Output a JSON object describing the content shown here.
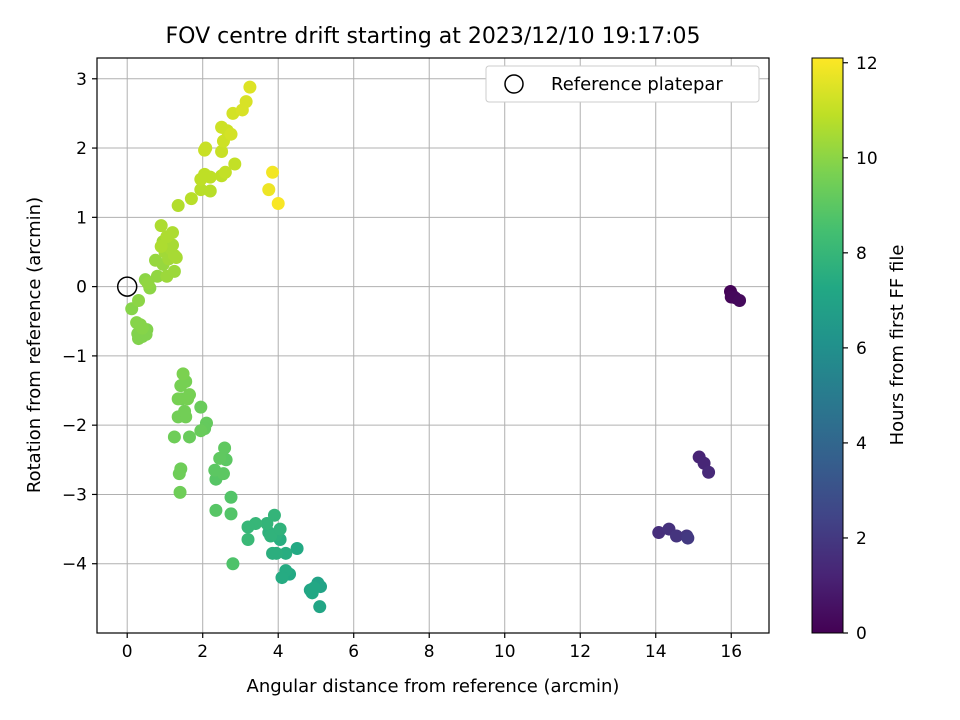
{
  "chart_data": {
    "type": "scatter",
    "title": "FOV centre drift starting at 2023/12/10 19:17:05",
    "xlabel": "Angular distance from reference (arcmin)",
    "ylabel": "Rotation from reference (arcmin)",
    "xlim": [
      -0.8,
      17.0
    ],
    "ylim": [
      -5.0,
      3.3
    ],
    "xticks": [
      0,
      2,
      4,
      6,
      8,
      10,
      12,
      14,
      16
    ],
    "yticks": [
      -4,
      -3,
      -2,
      -1,
      0,
      1,
      2,
      3
    ],
    "grid": true,
    "legend": {
      "position": "top-right",
      "entries": [
        "Reference platepar"
      ]
    },
    "reference_point": {
      "x": 0,
      "y": 0
    },
    "colorbar": {
      "label": "Hours from first FF file",
      "range": [
        0,
        12.1
      ],
      "ticks": [
        0,
        2,
        4,
        6,
        8,
        10,
        12
      ],
      "colormap": "viridis"
    },
    "points": [
      {
        "x": 15.98,
        "y": -0.07,
        "h": 0.1
      },
      {
        "x": 16.02,
        "y": -0.12,
        "h": 0.15
      },
      {
        "x": 16.0,
        "y": -0.15,
        "h": 0.2
      },
      {
        "x": 16.1,
        "y": -0.16,
        "h": 0.25
      },
      {
        "x": 16.22,
        "y": -0.2,
        "h": 0.3
      },
      {
        "x": 15.15,
        "y": -2.46,
        "h": 1.2
      },
      {
        "x": 15.28,
        "y": -2.55,
        "h": 1.3
      },
      {
        "x": 15.4,
        "y": -2.68,
        "h": 1.4
      },
      {
        "x": 14.08,
        "y": -3.55,
        "h": 1.6
      },
      {
        "x": 14.35,
        "y": -3.5,
        "h": 1.7
      },
      {
        "x": 14.55,
        "y": -3.6,
        "h": 1.8
      },
      {
        "x": 14.82,
        "y": -3.6,
        "h": 1.9
      },
      {
        "x": 14.85,
        "y": -3.63,
        "h": 2.0
      },
      {
        "x": 5.05,
        "y": -4.28,
        "h": 7.0
      },
      {
        "x": 5.12,
        "y": -4.33,
        "h": 7.0
      },
      {
        "x": 5.1,
        "y": -4.62,
        "h": 7.1
      },
      {
        "x": 4.85,
        "y": -4.38,
        "h": 7.1
      },
      {
        "x": 4.9,
        "y": -4.42,
        "h": 7.2
      },
      {
        "x": 4.95,
        "y": -4.35,
        "h": 7.2
      },
      {
        "x": 4.5,
        "y": -3.78,
        "h": 7.3
      },
      {
        "x": 4.3,
        "y": -4.15,
        "h": 7.3
      },
      {
        "x": 4.2,
        "y": -4.1,
        "h": 7.4
      },
      {
        "x": 4.1,
        "y": -4.2,
        "h": 7.4
      },
      {
        "x": 4.2,
        "y": -3.85,
        "h": 7.5
      },
      {
        "x": 4.05,
        "y": -3.65,
        "h": 7.5
      },
      {
        "x": 3.95,
        "y": -3.85,
        "h": 7.6
      },
      {
        "x": 3.85,
        "y": -3.85,
        "h": 7.6
      },
      {
        "x": 3.95,
        "y": -3.58,
        "h": 7.7
      },
      {
        "x": 3.75,
        "y": -3.55,
        "h": 7.7
      },
      {
        "x": 3.8,
        "y": -3.6,
        "h": 7.8
      },
      {
        "x": 4.05,
        "y": -3.5,
        "h": 7.8
      },
      {
        "x": 3.9,
        "y": -3.3,
        "h": 7.9
      },
      {
        "x": 3.7,
        "y": -3.42,
        "h": 7.9
      },
      {
        "x": 3.4,
        "y": -3.42,
        "h": 8.0
      },
      {
        "x": 3.2,
        "y": -3.47,
        "h": 8.0
      },
      {
        "x": 3.2,
        "y": -3.65,
        "h": 8.1
      },
      {
        "x": 2.8,
        "y": -4.0,
        "h": 8.7
      },
      {
        "x": 2.75,
        "y": -3.28,
        "h": 8.8
      },
      {
        "x": 2.75,
        "y": -3.04,
        "h": 8.8
      },
      {
        "x": 2.35,
        "y": -3.23,
        "h": 8.9
      },
      {
        "x": 2.35,
        "y": -2.78,
        "h": 8.9
      },
      {
        "x": 2.32,
        "y": -2.65,
        "h": 9.0
      },
      {
        "x": 2.55,
        "y": -2.7,
        "h": 9.0
      },
      {
        "x": 2.62,
        "y": -2.5,
        "h": 9.0
      },
      {
        "x": 2.45,
        "y": -2.48,
        "h": 9.1
      },
      {
        "x": 2.58,
        "y": -2.33,
        "h": 9.1
      },
      {
        "x": 2.1,
        "y": -1.97,
        "h": 9.2
      },
      {
        "x": 2.05,
        "y": -2.05,
        "h": 9.2
      },
      {
        "x": 1.95,
        "y": -2.08,
        "h": 9.3
      },
      {
        "x": 1.95,
        "y": -1.74,
        "h": 9.3
      },
      {
        "x": 1.65,
        "y": -2.17,
        "h": 9.3
      },
      {
        "x": 1.25,
        "y": -2.17,
        "h": 9.4
      },
      {
        "x": 1.4,
        "y": -2.97,
        "h": 9.4
      },
      {
        "x": 1.38,
        "y": -2.7,
        "h": 9.4
      },
      {
        "x": 1.42,
        "y": -2.63,
        "h": 9.4
      },
      {
        "x": 1.35,
        "y": -1.88,
        "h": 9.5
      },
      {
        "x": 1.55,
        "y": -1.88,
        "h": 9.5
      },
      {
        "x": 1.52,
        "y": -1.8,
        "h": 9.5
      },
      {
        "x": 1.45,
        "y": -1.62,
        "h": 9.5
      },
      {
        "x": 1.35,
        "y": -1.62,
        "h": 9.6
      },
      {
        "x": 1.6,
        "y": -1.62,
        "h": 9.6
      },
      {
        "x": 1.65,
        "y": -1.56,
        "h": 9.6
      },
      {
        "x": 1.42,
        "y": -1.43,
        "h": 9.6
      },
      {
        "x": 1.55,
        "y": -1.37,
        "h": 9.6
      },
      {
        "x": 1.48,
        "y": -1.26,
        "h": 9.7
      },
      {
        "x": 0.3,
        "y": -0.75,
        "h": 9.8
      },
      {
        "x": 0.28,
        "y": -0.68,
        "h": 9.8
      },
      {
        "x": 0.4,
        "y": -0.72,
        "h": 9.8
      },
      {
        "x": 0.5,
        "y": -0.69,
        "h": 9.8
      },
      {
        "x": 0.52,
        "y": -0.62,
        "h": 9.8
      },
      {
        "x": 0.4,
        "y": -0.6,
        "h": 9.9
      },
      {
        "x": 0.35,
        "y": -0.55,
        "h": 9.9
      },
      {
        "x": 0.25,
        "y": -0.52,
        "h": 9.9
      },
      {
        "x": 0.12,
        "y": -0.32,
        "h": 9.9
      },
      {
        "x": 0.3,
        "y": -0.2,
        "h": 10.0
      },
      {
        "x": 0.48,
        "y": 0.1,
        "h": 10.0
      },
      {
        "x": 0.6,
        "y": -0.02,
        "h": 10.0
      },
      {
        "x": 0.55,
        "y": 0.05,
        "h": 10.1
      },
      {
        "x": 0.8,
        "y": 0.15,
        "h": 10.1
      },
      {
        "x": 0.75,
        "y": 0.38,
        "h": 10.2
      },
      {
        "x": 0.95,
        "y": 0.32,
        "h": 10.2
      },
      {
        "x": 1.05,
        "y": 0.15,
        "h": 10.3
      },
      {
        "x": 1.25,
        "y": 0.22,
        "h": 10.3
      },
      {
        "x": 0.95,
        "y": 0.65,
        "h": 10.4
      },
      {
        "x": 1.0,
        "y": 0.5,
        "h": 10.4
      },
      {
        "x": 1.1,
        "y": 0.4,
        "h": 10.4
      },
      {
        "x": 1.15,
        "y": 0.55,
        "h": 10.5
      },
      {
        "x": 1.2,
        "y": 0.6,
        "h": 10.5
      },
      {
        "x": 1.25,
        "y": 0.45,
        "h": 10.5
      },
      {
        "x": 1.3,
        "y": 0.42,
        "h": 10.5
      },
      {
        "x": 0.9,
        "y": 0.58,
        "h": 10.6
      },
      {
        "x": 1.05,
        "y": 0.72,
        "h": 10.6
      },
      {
        "x": 1.2,
        "y": 0.78,
        "h": 10.6
      },
      {
        "x": 0.9,
        "y": 0.88,
        "h": 10.6
      },
      {
        "x": 1.35,
        "y": 1.17,
        "h": 10.7
      },
      {
        "x": 1.7,
        "y": 1.27,
        "h": 10.8
      },
      {
        "x": 1.95,
        "y": 1.4,
        "h": 10.8
      },
      {
        "x": 2.2,
        "y": 1.38,
        "h": 10.8
      },
      {
        "x": 1.95,
        "y": 1.55,
        "h": 10.9
      },
      {
        "x": 2.05,
        "y": 1.62,
        "h": 10.9
      },
      {
        "x": 2.2,
        "y": 1.58,
        "h": 10.9
      },
      {
        "x": 2.5,
        "y": 1.6,
        "h": 10.9
      },
      {
        "x": 2.6,
        "y": 1.65,
        "h": 11.0
      },
      {
        "x": 2.85,
        "y": 1.77,
        "h": 11.0
      },
      {
        "x": 2.05,
        "y": 1.97,
        "h": 11.1
      },
      {
        "x": 2.08,
        "y": 2.0,
        "h": 11.1
      },
      {
        "x": 2.5,
        "y": 1.95,
        "h": 11.1
      },
      {
        "x": 2.55,
        "y": 2.1,
        "h": 11.2
      },
      {
        "x": 2.5,
        "y": 2.3,
        "h": 11.2
      },
      {
        "x": 2.65,
        "y": 2.25,
        "h": 11.2
      },
      {
        "x": 2.75,
        "y": 2.2,
        "h": 11.3
      },
      {
        "x": 2.8,
        "y": 2.5,
        "h": 11.3
      },
      {
        "x": 3.05,
        "y": 2.55,
        "h": 11.4
      },
      {
        "x": 3.15,
        "y": 2.67,
        "h": 11.4
      },
      {
        "x": 3.25,
        "y": 2.88,
        "h": 11.5
      },
      {
        "x": 3.75,
        "y": 1.4,
        "h": 11.8
      },
      {
        "x": 3.85,
        "y": 1.65,
        "h": 11.9
      },
      {
        "x": 4.0,
        "y": 1.2,
        "h": 12.0
      }
    ]
  }
}
